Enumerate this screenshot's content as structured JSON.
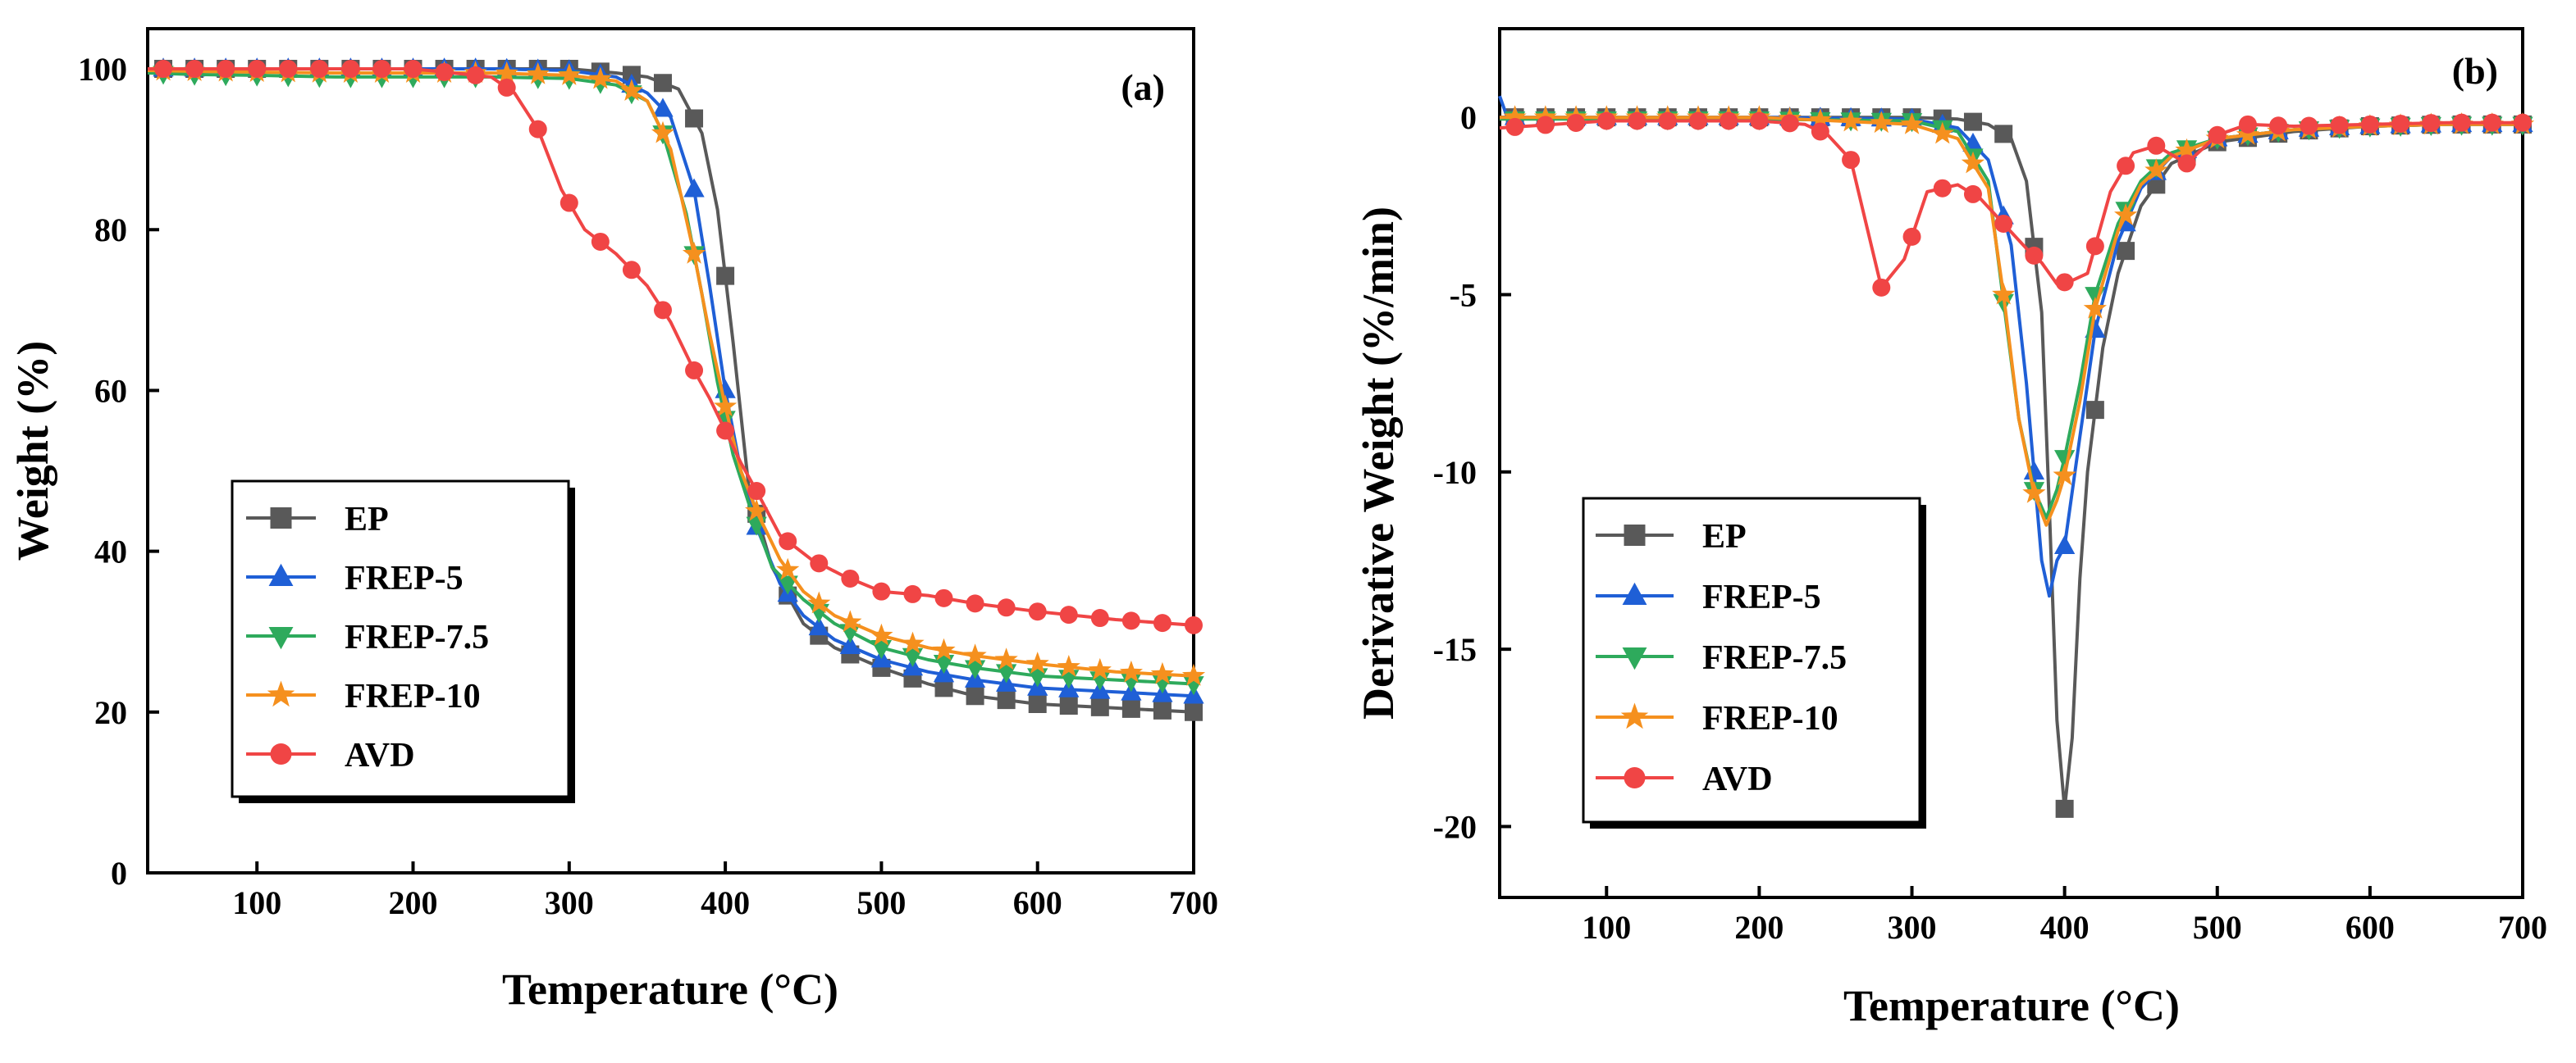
{
  "chart_data": [
    {
      "panel_label": "(a)",
      "type": "line",
      "xlabel": "Temperature (°C)",
      "ylabel": "Weight (%)",
      "xlim": [
        30,
        700
      ],
      "ylim": [
        0,
        105
      ],
      "xticks": [
        100,
        200,
        300,
        400,
        500,
        600,
        700
      ],
      "xtick_labels": [
        "100",
        "200",
        "300",
        "400",
        "500",
        "600",
        "700"
      ],
      "yticks": [
        0,
        20,
        40,
        60,
        80,
        100
      ],
      "ytick_labels": [
        "0",
        "20",
        "40",
        "60",
        "80",
        "100"
      ],
      "legend_position": "bottom-left",
      "series": [
        {
          "name": "EP",
          "color": "#595959",
          "marker": "square",
          "x": [
            30,
            60,
            100,
            150,
            200,
            250,
            300,
            330,
            350,
            370,
            385,
            395,
            405,
            415,
            430,
            450,
            470,
            500,
            530,
            560,
            600,
            650,
            700
          ],
          "y": [
            100,
            100,
            100,
            100,
            100,
            100,
            100,
            99.5,
            99,
            97.5,
            92,
            82.5,
            66,
            48,
            38,
            31,
            28,
            25.5,
            23.5,
            22,
            21,
            20.5,
            20
          ]
        },
        {
          "name": "FREP-5",
          "color": "#1f5fd6",
          "marker": "triangle-up",
          "x": [
            30,
            60,
            100,
            150,
            200,
            250,
            300,
            330,
            350,
            365,
            380,
            390,
            400,
            410,
            420,
            435,
            450,
            470,
            500,
            530,
            560,
            600,
            650,
            700
          ],
          "y": [
            100,
            100,
            100,
            100,
            100,
            100,
            99.8,
            99,
            97,
            94,
            85,
            73,
            60,
            50,
            43,
            36,
            32,
            29,
            26.5,
            25,
            24,
            23,
            22.5,
            22
          ]
        },
        {
          "name": "FREP-7.5",
          "color": "#2eaa5c",
          "marker": "triangle-down",
          "x": [
            30,
            60,
            100,
            150,
            200,
            250,
            300,
            330,
            350,
            360,
            375,
            385,
            395,
            405,
            415,
            430,
            450,
            470,
            500,
            530,
            560,
            600,
            650,
            700
          ],
          "y": [
            99.5,
            99.3,
            99.2,
            99,
            99,
            99,
            98.8,
            98,
            96,
            92,
            82,
            72,
            61,
            52,
            46,
            38,
            34,
            31,
            28,
            26.5,
            25.5,
            24.5,
            24,
            23.5
          ]
        },
        {
          "name": "FREP-10",
          "color": "#f5901e",
          "marker": "star",
          "x": [
            30,
            60,
            100,
            150,
            200,
            250,
            300,
            330,
            350,
            365,
            380,
            390,
            400,
            410,
            420,
            435,
            450,
            470,
            500,
            530,
            560,
            600,
            650,
            700
          ],
          "y": [
            99.8,
            99.7,
            99.6,
            99.5,
            99.5,
            99.5,
            99.2,
            98.5,
            96,
            90,
            77,
            67,
            58,
            50,
            45,
            39,
            35,
            32,
            29.5,
            28,
            27,
            26,
            25,
            24.5
          ]
        },
        {
          "name": "AVD",
          "color": "#f04545",
          "marker": "circle",
          "x": [
            30,
            100,
            200,
            250,
            265,
            280,
            295,
            310,
            330,
            350,
            365,
            380,
            390,
            400,
            410,
            420,
            435,
            455,
            475,
            500,
            530,
            560,
            600,
            650,
            700
          ],
          "y": [
            100,
            100,
            100,
            99,
            97,
            92.5,
            85,
            80,
            77,
            73,
            68.5,
            62.5,
            59,
            55,
            51,
            47.5,
            42,
            39,
            37,
            35,
            34.5,
            33.5,
            32.5,
            31.5,
            30.8
          ]
        }
      ]
    },
    {
      "panel_label": "(b)",
      "type": "line",
      "xlabel": "Temperature (°C)",
      "ylabel": "Derivative Weight (%/min)",
      "xlim": [
        30,
        700
      ],
      "ylim": [
        -22,
        2.5
      ],
      "xticks": [
        100,
        200,
        300,
        400,
        500,
        600,
        700
      ],
      "xtick_labels": [
        "100",
        "200",
        "300",
        "400",
        "500",
        "600",
        "700"
      ],
      "yticks": [
        -20,
        -15,
        -10,
        -5,
        0
      ],
      "ytick_labels": [
        "-20",
        "-15",
        "-10",
        "-5",
        "0"
      ],
      "legend_position": "bottom-left",
      "series": [
        {
          "name": "EP",
          "color": "#595959",
          "marker": "square",
          "x": [
            30,
            100,
            200,
            300,
            330,
            350,
            365,
            375,
            385,
            390,
            395,
            400,
            405,
            410,
            415,
            425,
            435,
            450,
            470,
            500,
            550,
            600,
            650,
            700
          ],
          "y": [
            0,
            0,
            0,
            0,
            -0.05,
            -0.2,
            -0.6,
            -1.8,
            -5.5,
            -11,
            -17,
            -19.5,
            -17.5,
            -13,
            -10,
            -6.5,
            -4.4,
            -2.5,
            -1.3,
            -0.7,
            -0.4,
            -0.25,
            -0.2,
            -0.2
          ]
        },
        {
          "name": "FREP-5",
          "color": "#1f5fd6",
          "marker": "triangle-up",
          "x": [
            30,
            35,
            50,
            100,
            200,
            300,
            330,
            350,
            365,
            375,
            385,
            390,
            395,
            400,
            410,
            420,
            435,
            450,
            470,
            500,
            550,
            600,
            650,
            700
          ],
          "y": [
            0.6,
            0,
            0,
            0,
            0,
            -0.05,
            -0.3,
            -1.2,
            -3.6,
            -7.5,
            -12.5,
            -13.5,
            -12.5,
            -12.1,
            -9,
            -6,
            -3.5,
            -2,
            -1.1,
            -0.6,
            -0.35,
            -0.25,
            -0.2,
            -0.2
          ]
        },
        {
          "name": "FREP-7.5",
          "color": "#2eaa5c",
          "marker": "triangle-down",
          "x": [
            30,
            100,
            200,
            300,
            330,
            350,
            360,
            370,
            380,
            388,
            395,
            400,
            410,
            420,
            435,
            450,
            470,
            500,
            550,
            600,
            650,
            700
          ],
          "y": [
            -0.05,
            -0.05,
            -0.05,
            -0.1,
            -0.4,
            -1.8,
            -5.2,
            -8.5,
            -10.5,
            -11.3,
            -10.5,
            -9.6,
            -7.5,
            -5,
            -3,
            -1.8,
            -1,
            -0.6,
            -0.35,
            -0.25,
            -0.2,
            -0.2
          ]
        },
        {
          "name": "FREP-10",
          "color": "#f5901e",
          "marker": "star",
          "x": [
            30,
            100,
            200,
            300,
            330,
            350,
            360,
            370,
            380,
            388,
            395,
            400,
            410,
            420,
            435,
            450,
            470,
            500,
            550,
            600,
            650,
            700
          ],
          "y": [
            0,
            0,
            0,
            -0.2,
            -0.6,
            -2,
            -5,
            -8.5,
            -10.6,
            -11.5,
            -10.8,
            -10.1,
            -8,
            -5.4,
            -3.2,
            -1.9,
            -1.1,
            -0.6,
            -0.35,
            -0.25,
            -0.2,
            -0.2
          ]
        },
        {
          "name": "AVD",
          "color": "#f04545",
          "marker": "circle",
          "x": [
            30,
            100,
            200,
            230,
            245,
            260,
            270,
            280,
            295,
            310,
            330,
            345,
            360,
            375,
            385,
            395,
            405,
            415,
            430,
            445,
            460,
            480,
            500,
            520,
            550,
            600,
            650,
            700
          ],
          "y": [
            -0.3,
            -0.1,
            -0.1,
            -0.2,
            -0.5,
            -1.2,
            -3,
            -4.8,
            -4,
            -2.1,
            -1.9,
            -2.3,
            -3,
            -3.7,
            -4.1,
            -4.7,
            -4.6,
            -4.4,
            -2.1,
            -1,
            -0.8,
            -1.3,
            -0.5,
            -0.2,
            -0.25,
            -0.2,
            -0.15,
            -0.15
          ]
        }
      ]
    }
  ]
}
